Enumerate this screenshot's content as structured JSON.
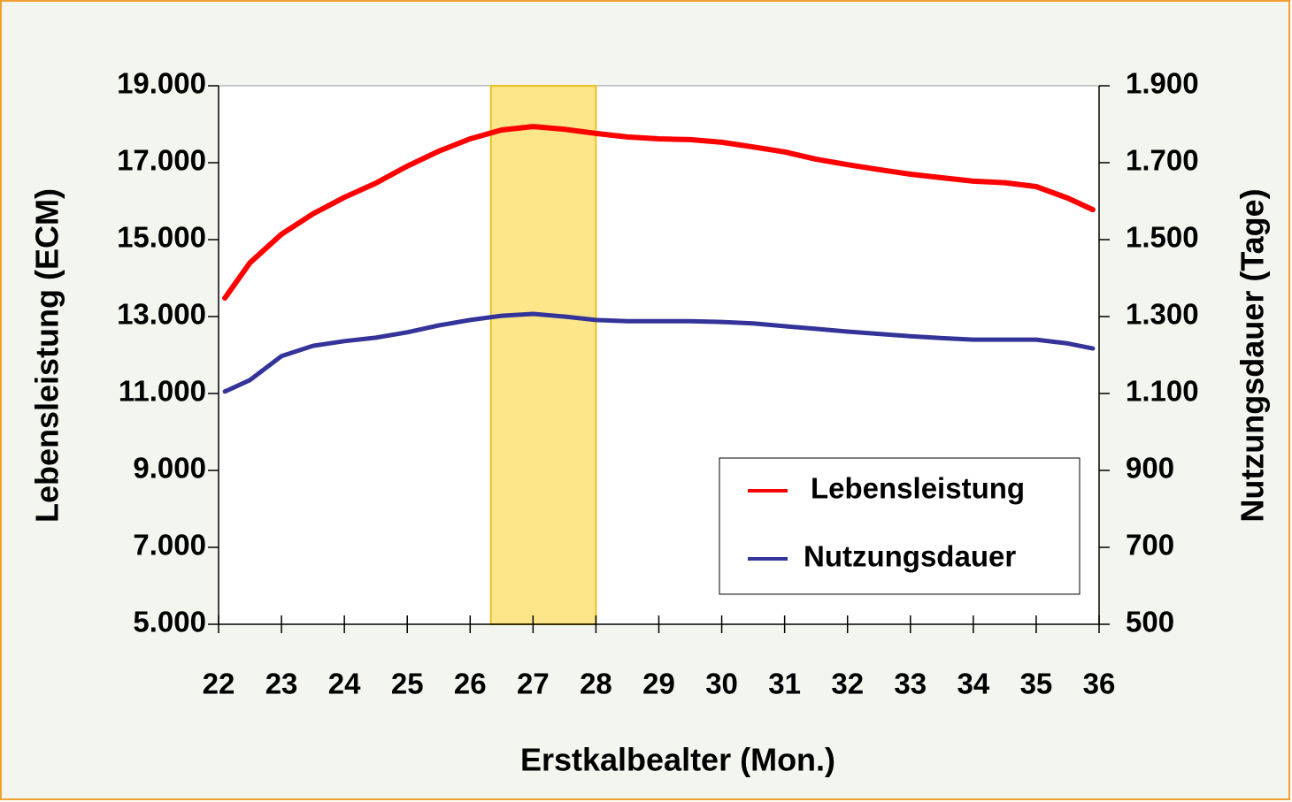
{
  "chart_data": {
    "type": "line",
    "xlabel": "Erstkalbealter (Mon.)",
    "ylabel": "Lebensleistung (ECM)",
    "y2label": "Nutzungsdauer (Tage)",
    "x": [
      22.1,
      22.5,
      23,
      23.5,
      24,
      24.5,
      25,
      25.5,
      26,
      26.5,
      27,
      27.5,
      28,
      28.5,
      29,
      29.5,
      30,
      30.5,
      31,
      31.5,
      32,
      32.5,
      33,
      33.5,
      34,
      34.5,
      35,
      35.5,
      35.9
    ],
    "series": [
      {
        "name": "Lebensleistung",
        "color": "#ff0000",
        "values": [
          13480,
          14400,
          15140,
          15670,
          16100,
          16470,
          16910,
          17300,
          17620,
          17850,
          17940,
          17870,
          17760,
          17670,
          17620,
          17600,
          17530,
          17410,
          17280,
          17090,
          16950,
          16820,
          16700,
          16610,
          16520,
          16480,
          16380,
          16080,
          15780
        ]
      },
      {
        "name": "Nutzungsdauer",
        "color": "#333399",
        "axis": "y2",
        "values": [
          1105,
          1135,
          1197,
          1224,
          1236,
          1245,
          1259,
          1277,
          1291,
          1302,
          1307,
          1300,
          1291,
          1288,
          1288,
          1288,
          1286,
          1282,
          1275,
          1268,
          1261,
          1255,
          1249,
          1244,
          1240,
          1240,
          1240,
          1230,
          1217
        ]
      }
    ],
    "highlight": [
      26.33,
      28
    ],
    "highlight_color": "#fde68a",
    "xlim": [
      22,
      36
    ],
    "xticks": [
      22,
      23,
      24,
      25,
      26,
      27,
      28,
      29,
      30,
      31,
      32,
      33,
      34,
      35,
      36
    ],
    "ylim": [
      5000,
      19000
    ],
    "yticks": [
      {
        "value": 5000,
        "label": "5.000"
      },
      {
        "value": 7000,
        "label": "7.000"
      },
      {
        "value": 9000,
        "label": "9.000"
      },
      {
        "value": 11000,
        "label": "11.000"
      },
      {
        "value": 13000,
        "label": "13.000"
      },
      {
        "value": 15000,
        "label": "15.000"
      },
      {
        "value": 17000,
        "label": "17.000"
      },
      {
        "value": 19000,
        "label": "19.000"
      }
    ],
    "y2lim": [
      500,
      1900
    ],
    "y2ticks": [
      500,
      700,
      900,
      {
        "value": 1100,
        "label": "1.100"
      },
      {
        "value": 1300,
        "label": "1.300"
      },
      {
        "value": 1500,
        "label": "1.500"
      },
      {
        "value": 1700,
        "label": "1.700"
      },
      {
        "value": 1900,
        "label": "1.900"
      }
    ]
  }
}
